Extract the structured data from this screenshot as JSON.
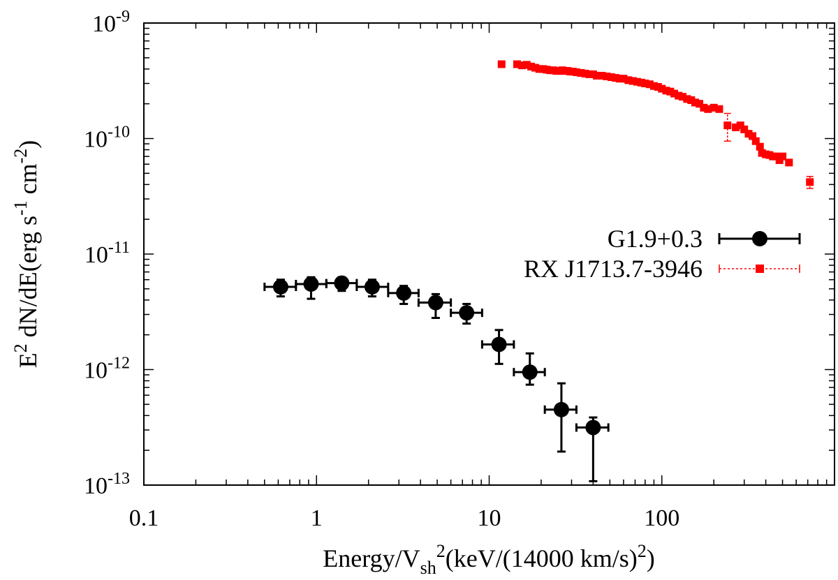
{
  "chart_data": {
    "type": "scatter",
    "xscale": "log",
    "yscale": "log",
    "xlim": [
      0.1,
      1000
    ],
    "ylim": [
      1e-13,
      1e-09
    ],
    "xlabel": {
      "prefix": "Energy/V",
      "sub": "sh",
      "sup": "2",
      "suffix_a": "(keV/(14000 km/s)",
      "suffix_sup": "2",
      "suffix_b": ")"
    },
    "ylabel": {
      "base": "E",
      "sup1": "2",
      "mid1": " dN/dE(erg s",
      "sup2": "-1",
      "mid2": " cm",
      "sup3": "-2",
      "end": ")"
    },
    "x_ticks": [
      {
        "value": 0.1,
        "label": "0.1"
      },
      {
        "value": 1,
        "label": "1"
      },
      {
        "value": 10,
        "label": "10"
      },
      {
        "value": 100,
        "label": "100"
      }
    ],
    "y_ticks": [
      {
        "value": 1e-13,
        "base": "10",
        "exp": "-13"
      },
      {
        "value": 1e-12,
        "base": "10",
        "exp": "-12"
      },
      {
        "value": 1e-11,
        "base": "10",
        "exp": "-11"
      },
      {
        "value": 1e-10,
        "base": "10",
        "exp": "-10"
      },
      {
        "value": 1e-09,
        "base": "10",
        "exp": "-9"
      }
    ],
    "legend_position": "right-middle",
    "series": [
      {
        "name": "G1.9+0.3",
        "color": "#000000",
        "marker": "circle",
        "line": "solid",
        "points": [
          {
            "x": 0.62,
            "y": 5.2e-12,
            "xlo": 0.5,
            "xhi": 0.76,
            "ylo": 4.3e-12,
            "yhi": 6e-12
          },
          {
            "x": 0.93,
            "y": 5.5e-12,
            "xlo": 0.76,
            "xhi": 1.14,
            "ylo": 4.1e-12,
            "yhi": 6.3e-12
          },
          {
            "x": 1.4,
            "y": 5.6e-12,
            "xlo": 1.14,
            "xhi": 1.71,
            "ylo": 4.8e-12,
            "yhi": 6.3e-12
          },
          {
            "x": 2.1,
            "y": 5.2e-12,
            "xlo": 1.71,
            "xhi": 2.6,
            "ylo": 4.3e-12,
            "yhi": 6e-12
          },
          {
            "x": 3.2,
            "y": 4.6e-12,
            "xlo": 2.6,
            "xhi": 3.9,
            "ylo": 3.7e-12,
            "yhi": 5.3e-12
          },
          {
            "x": 4.9,
            "y": 3.8e-12,
            "xlo": 3.9,
            "xhi": 6.0,
            "ylo": 2.8e-12,
            "yhi": 4.5e-12
          },
          {
            "x": 7.4,
            "y": 3.1e-12,
            "xlo": 6.0,
            "xhi": 9.1,
            "ylo": 2.5e-12,
            "yhi": 3.7e-12
          },
          {
            "x": 11.4,
            "y": 1.65e-12,
            "xlo": 9.1,
            "xhi": 13.9,
            "ylo": 1.12e-12,
            "yhi": 2.2e-12
          },
          {
            "x": 17.2,
            "y": 9.5e-13,
            "xlo": 13.9,
            "xhi": 21.0,
            "ylo": 7.4e-13,
            "yhi": 1.38e-12
          },
          {
            "x": 26.2,
            "y": 4.5e-13,
            "xlo": 21.0,
            "xhi": 32.0,
            "ylo": 1.95e-13,
            "yhi": 7.6e-13
          },
          {
            "x": 40.0,
            "y": 3.15e-13,
            "xlo": 32.0,
            "xhi": 49.0,
            "ylo": 1.08e-13,
            "yhi": 3.85e-13
          }
        ]
      },
      {
        "name": "RX J1713.7-3946",
        "color": "#ff0000",
        "marker": "square",
        "line": "dotted",
        "points": [
          {
            "x": 11.8,
            "y": 4.4e-10
          },
          {
            "x": 14.5,
            "y": 4.4e-10
          },
          {
            "x": 15.5,
            "y": 4.3e-10
          },
          {
            "x": 16.5,
            "y": 4.35e-10
          },
          {
            "x": 17.5,
            "y": 4.2e-10
          },
          {
            "x": 18.5,
            "y": 4.1e-10
          },
          {
            "x": 19.5,
            "y": 4e-10
          },
          {
            "x": 20.5,
            "y": 4e-10
          },
          {
            "x": 21.5,
            "y": 3.95e-10
          },
          {
            "x": 22.5,
            "y": 3.9e-10
          },
          {
            "x": 23.5,
            "y": 3.9e-10
          },
          {
            "x": 24.5,
            "y": 3.85e-10
          },
          {
            "x": 25.5,
            "y": 3.85e-10
          },
          {
            "x": 26.5,
            "y": 3.9e-10
          },
          {
            "x": 27.5,
            "y": 3.85e-10
          },
          {
            "x": 28.5,
            "y": 3.85e-10
          },
          {
            "x": 29.5,
            "y": 3.8e-10
          },
          {
            "x": 30.5,
            "y": 3.8e-10
          },
          {
            "x": 32,
            "y": 3.75e-10
          },
          {
            "x": 34,
            "y": 3.7e-10
          },
          {
            "x": 36,
            "y": 3.65e-10
          },
          {
            "x": 38,
            "y": 3.6e-10
          },
          {
            "x": 40,
            "y": 3.6e-10
          },
          {
            "x": 42,
            "y": 3.5e-10
          },
          {
            "x": 45,
            "y": 3.5e-10
          },
          {
            "x": 48,
            "y": 3.45e-10
          },
          {
            "x": 51,
            "y": 3.4e-10
          },
          {
            "x": 54,
            "y": 3.35e-10
          },
          {
            "x": 57,
            "y": 3.3e-10
          },
          {
            "x": 60,
            "y": 3.3e-10
          },
          {
            "x": 64,
            "y": 3.2e-10
          },
          {
            "x": 68,
            "y": 3.15e-10
          },
          {
            "x": 72,
            "y": 3.1e-10
          },
          {
            "x": 76,
            "y": 3.05e-10
          },
          {
            "x": 80,
            "y": 3e-10
          },
          {
            "x": 85,
            "y": 2.95e-10
          },
          {
            "x": 90,
            "y": 2.85e-10
          },
          {
            "x": 95,
            "y": 2.8e-10
          },
          {
            "x": 100,
            "y": 2.7e-10
          },
          {
            "x": 106,
            "y": 2.6e-10
          },
          {
            "x": 112,
            "y": 2.55e-10
          },
          {
            "x": 118,
            "y": 2.45e-10
          },
          {
            "x": 125,
            "y": 2.35e-10
          },
          {
            "x": 132,
            "y": 2.3e-10
          },
          {
            "x": 140,
            "y": 2.2e-10
          },
          {
            "x": 148,
            "y": 2.15e-10
          },
          {
            "x": 156,
            "y": 2.05e-10
          },
          {
            "x": 165,
            "y": 2e-10
          },
          {
            "x": 175,
            "y": 1.85e-10
          },
          {
            "x": 185,
            "y": 1.8e-10
          },
          {
            "x": 200,
            "y": 1.85e-10
          },
          {
            "x": 215,
            "y": 1.8e-10
          },
          {
            "x": 240,
            "y": 1.3e-10,
            "ylo": 9.5e-11,
            "yhi": 1.65e-10
          },
          {
            "x": 268,
            "y": 1.25e-10
          },
          {
            "x": 285,
            "y": 1.3e-10
          },
          {
            "x": 300,
            "y": 1.2e-10
          },
          {
            "x": 318,
            "y": 1.1e-10
          },
          {
            "x": 335,
            "y": 1.05e-10
          },
          {
            "x": 350,
            "y": 9.5e-11
          },
          {
            "x": 370,
            "y": 8.5e-11
          },
          {
            "x": 380,
            "y": 7.5e-11
          },
          {
            "x": 400,
            "y": 7.3e-11
          },
          {
            "x": 420,
            "y": 7.2e-11
          },
          {
            "x": 440,
            "y": 7e-11
          },
          {
            "x": 460,
            "y": 7e-11
          },
          {
            "x": 480,
            "y": 6.5e-11
          },
          {
            "x": 500,
            "y": 7e-11
          },
          {
            "x": 545,
            "y": 6.2e-11
          },
          {
            "x": 720,
            "y": 4.2e-11,
            "ylo": 3.7e-11,
            "yhi": 4.7e-11
          }
        ]
      }
    ]
  }
}
